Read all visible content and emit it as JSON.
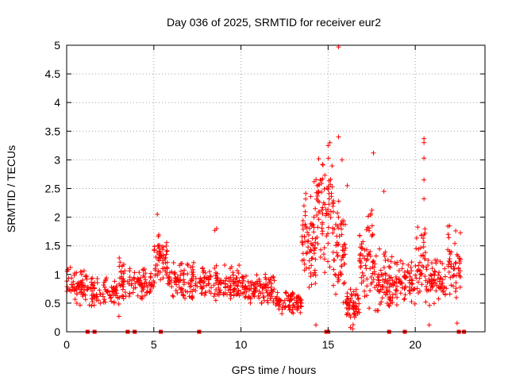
{
  "chart_data": {
    "type": "scatter",
    "title": "Day 036 of 2025, SRMTID for receiver eur2",
    "xlabel": "GPS time / hours",
    "ylabel": "SRMTID / TECUs",
    "xlim": [
      0,
      24
    ],
    "ylim": [
      0,
      5
    ],
    "xticks": [
      0,
      5,
      10,
      15,
      20
    ],
    "xtick_labels": [
      "0",
      "5",
      "10",
      "15",
      "20"
    ],
    "yticks": [
      0,
      0.5,
      1,
      1.5,
      2,
      2.5,
      3,
      3.5,
      4,
      4.5,
      5
    ],
    "ytick_labels": [
      "0",
      "0.5",
      "1",
      "1.5",
      "2",
      "2.5",
      "3",
      "3.5",
      "4",
      "4.5",
      "5"
    ],
    "grid": true,
    "marker": "+",
    "series_color": "#ff0000",
    "segments": [
      {
        "t0": 0.0,
        "t1": 1.3,
        "lo": 0.45,
        "hi": 1.15,
        "n": 70
      },
      {
        "t0": 1.3,
        "t1": 3.0,
        "lo": 0.4,
        "hi": 1.0,
        "n": 80
      },
      {
        "t0": 3.0,
        "t1": 4.0,
        "lo": 0.5,
        "hi": 1.3,
        "n": 50
      },
      {
        "t0": 4.0,
        "t1": 5.0,
        "lo": 0.5,
        "hi": 1.2,
        "n": 55
      },
      {
        "t0": 5.0,
        "t1": 5.8,
        "lo": 0.8,
        "hi": 1.8,
        "n": 55
      },
      {
        "t0": 5.8,
        "t1": 7.5,
        "lo": 0.5,
        "hi": 1.3,
        "n": 90
      },
      {
        "t0": 7.5,
        "t1": 10.0,
        "lo": 0.5,
        "hi": 1.2,
        "n": 130
      },
      {
        "t0": 10.0,
        "t1": 12.0,
        "lo": 0.45,
        "hi": 1.05,
        "n": 110
      },
      {
        "t0": 12.0,
        "t1": 13.5,
        "lo": 0.3,
        "hi": 0.75,
        "n": 80
      },
      {
        "t0": 13.5,
        "t1": 14.3,
        "lo": 0.6,
        "hi": 2.6,
        "n": 70
      },
      {
        "t0": 14.3,
        "t1": 15.3,
        "lo": 1.0,
        "hi": 3.3,
        "n": 80
      },
      {
        "t0": 15.3,
        "t1": 16.0,
        "lo": 0.5,
        "hi": 2.4,
        "n": 60
      },
      {
        "t0": 16.0,
        "t1": 16.8,
        "lo": 0.05,
        "hi": 0.8,
        "n": 60
      },
      {
        "t0": 16.8,
        "t1": 17.6,
        "lo": 0.4,
        "hi": 2.3,
        "n": 60
      },
      {
        "t0": 17.6,
        "t1": 18.6,
        "lo": 0.2,
        "hi": 1.5,
        "n": 70
      },
      {
        "t0": 18.6,
        "t1": 20.0,
        "lo": 0.4,
        "hi": 1.4,
        "n": 80
      },
      {
        "t0": 20.0,
        "t1": 20.6,
        "lo": 0.5,
        "hi": 2.0,
        "n": 40
      },
      {
        "t0": 20.6,
        "t1": 21.8,
        "lo": 0.4,
        "hi": 1.4,
        "n": 70
      },
      {
        "t0": 21.8,
        "t1": 22.6,
        "lo": 0.5,
        "hi": 1.9,
        "n": 50
      }
    ],
    "outliers": [
      {
        "x": 15.6,
        "y": 4.97
      },
      {
        "x": 15.6,
        "y": 3.4
      },
      {
        "x": 15.8,
        "y": 3.0
      },
      {
        "x": 15.1,
        "y": 3.3
      },
      {
        "x": 15.0,
        "y": 3.25
      },
      {
        "x": 17.6,
        "y": 3.12
      },
      {
        "x": 20.5,
        "y": 3.37
      },
      {
        "x": 20.5,
        "y": 3.3
      },
      {
        "x": 20.5,
        "y": 3.03
      },
      {
        "x": 20.5,
        "y": 2.65
      },
      {
        "x": 20.5,
        "y": 2.32
      },
      {
        "x": 14.2,
        "y": 2.62
      },
      {
        "x": 16.1,
        "y": 2.55
      },
      {
        "x": 18.2,
        "y": 2.45
      },
      {
        "x": 8.6,
        "y": 1.8
      },
      {
        "x": 8.5,
        "y": 1.77
      },
      {
        "x": 5.2,
        "y": 2.05
      },
      {
        "x": 14.3,
        "y": 0.12
      },
      {
        "x": 16.4,
        "y": 0.05
      },
      {
        "x": 20.8,
        "y": 0.12
      },
      {
        "x": 22.4,
        "y": 0.15
      },
      {
        "x": 3.0,
        "y": 0.27
      }
    ],
    "zero_markers": [
      1.2,
      1.6,
      3.5,
      3.9,
      5.4,
      7.6,
      14.9,
      15.0,
      18.5,
      19.4,
      22.5,
      22.8
    ]
  }
}
